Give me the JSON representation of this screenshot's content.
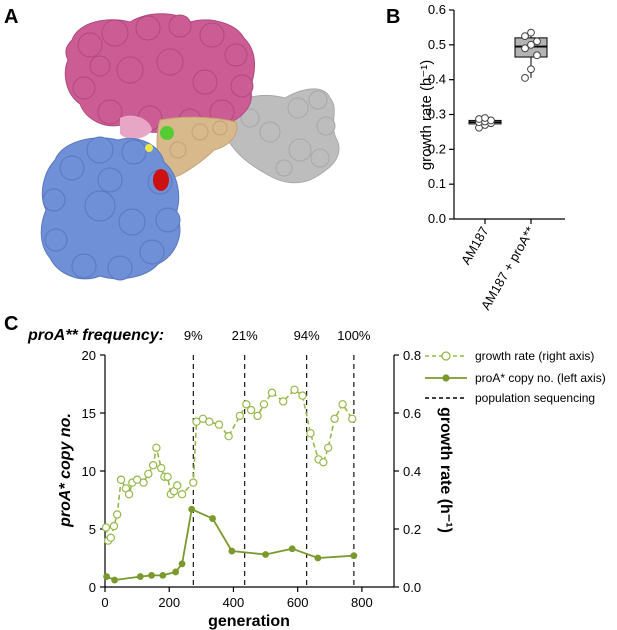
{
  "panel_labels": {
    "a": "A",
    "b": "B",
    "c": "C"
  },
  "colors": {
    "protein_pink": "#cc5c94",
    "protein_blue": "#6f8fd6",
    "protein_gray": "#bdbdbd",
    "protein_tan": "#d8b98c",
    "protein_green": "#55cc33",
    "protein_red": "#cc1111",
    "protein_yellow": "#e8e84a",
    "olive": "#7a9a2e",
    "olive_light": "#95b84a",
    "box_fill": "#b3b3b3"
  },
  "structure": {
    "icon": "protein-surface-render"
  },
  "chart_data": [
    {
      "type": "box",
      "panel": "B",
      "title": "",
      "xlabel": "",
      "ylabel": "growth rate (h⁻¹)",
      "ylim": [
        0,
        0.6
      ],
      "yticks": [
        "0.0",
        "0.1",
        "0.2",
        "0.3",
        "0.4",
        "0.5",
        "0.6"
      ],
      "categories": [
        "AM187",
        "AM187 + proA**"
      ],
      "boxes": [
        {
          "category": "AM187",
          "q1": 0.273,
          "median": 0.278,
          "q3": 0.283,
          "min": 0.262,
          "max": 0.29,
          "points": [
            0.262,
            0.27,
            0.275,
            0.278,
            0.28,
            0.283,
            0.287,
            0.29
          ]
        },
        {
          "category": "AM187 + proA**",
          "q1": 0.465,
          "median": 0.495,
          "q3": 0.52,
          "min": 0.405,
          "max": 0.535,
          "points": [
            0.405,
            0.43,
            0.47,
            0.49,
            0.5,
            0.51,
            0.525,
            0.535
          ]
        }
      ]
    },
    {
      "type": "line",
      "panel": "C",
      "header_label": "proA** frequency:",
      "xlabel": "generation",
      "ylabel_left": "proA* copy no.",
      "ylabel_right": "growth rate (h⁻¹)",
      "xlim": [
        0,
        900
      ],
      "ylim_left": [
        0,
        20
      ],
      "ylim_right": [
        0,
        0.8
      ],
      "xticks": [
        "0",
        "200",
        "400",
        "600",
        "800"
      ],
      "yticks_left": [
        "0",
        "5",
        "10",
        "15",
        "20"
      ],
      "yticks_right": [
        "0.0",
        "0.2",
        "0.4",
        "0.6",
        "0.8"
      ],
      "legend": [
        "growth rate (right axis)",
        "proA* copy no. (left axis)",
        "population sequencing"
      ],
      "legend_position": "top-right",
      "sequencing": [
        {
          "x": 275,
          "label": "9%"
        },
        {
          "x": 435,
          "label": "21%"
        },
        {
          "x": 628,
          "label": "94%"
        },
        {
          "x": 775,
          "label": "100%"
        }
      ],
      "series": [
        {
          "name": "proA* copy no. (left axis)",
          "axis": "left",
          "style": "solid",
          "x": [
            5,
            30,
            110,
            145,
            180,
            220,
            240,
            270,
            335,
            395,
            500,
            583,
            663,
            775
          ],
          "y": [
            0.9,
            0.6,
            0.9,
            1.0,
            1.0,
            1.3,
            2.0,
            6.7,
            5.9,
            3.1,
            2.8,
            3.3,
            2.5,
            2.7
          ]
        },
        {
          "name": "growth rate (right axis)",
          "axis": "right",
          "style": "dashed",
          "x": [
            3,
            10,
            18,
            28,
            38,
            50,
            65,
            75,
            85,
            100,
            120,
            135,
            150,
            160,
            175,
            185,
            195,
            205,
            215,
            225,
            240,
            275,
            285,
            305,
            325,
            355,
            385,
            420,
            440,
            455,
            475,
            495,
            520,
            555,
            590,
            615,
            640,
            665,
            680,
            695,
            715,
            740,
            770
          ],
          "y": [
            0.205,
            0.16,
            0.17,
            0.21,
            0.25,
            0.37,
            0.34,
            0.32,
            0.36,
            0.37,
            0.36,
            0.39,
            0.42,
            0.48,
            0.41,
            0.38,
            0.38,
            0.32,
            0.33,
            0.35,
            0.32,
            0.36,
            0.57,
            0.58,
            0.57,
            0.56,
            0.52,
            0.59,
            0.63,
            0.61,
            0.59,
            0.63,
            0.67,
            0.64,
            0.68,
            0.66,
            0.53,
            0.44,
            0.43,
            0.48,
            0.58,
            0.63,
            0.58
          ]
        }
      ]
    }
  ]
}
